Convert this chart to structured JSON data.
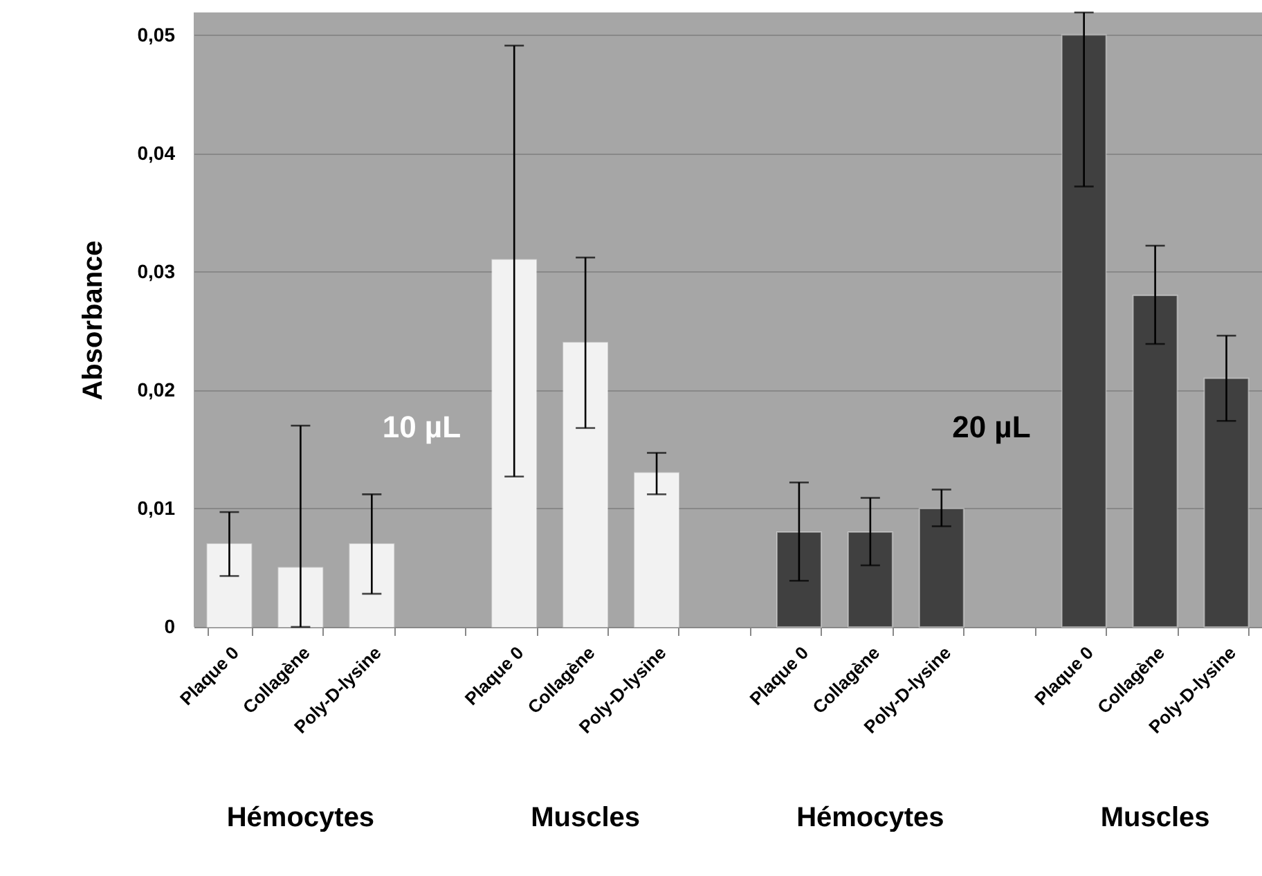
{
  "chart_data": {
    "type": "bar",
    "ylabel": "Absorbance",
    "categories": [
      "Plaque 0",
      "Collagène",
      "Poly-D-lysine",
      null,
      "Plaque 0",
      "Collagène",
      "Poly-D-lysine",
      null,
      "Plaque 0",
      "Collagène",
      "Poly-D-lysine",
      null,
      "Plaque 0",
      "Collagène",
      "Poly-D-lysine"
    ],
    "values": [
      0.007,
      0.005,
      0.007,
      null,
      0.031,
      0.024,
      0.013,
      null,
      0.008,
      0.008,
      0.01,
      null,
      0.05,
      0.028,
      0.021
    ],
    "errors": [
      [
        0.0043,
        0.0097
      ],
      [
        0,
        0.017
      ],
      [
        0.0028,
        0.0112
      ],
      null,
      [
        0.0127,
        0.0491
      ],
      [
        0.0168,
        0.0312
      ],
      [
        0.0112,
        0.0147
      ],
      null,
      [
        0.0039,
        0.0122
      ],
      [
        0.0052,
        0.0109
      ],
      [
        0.0085,
        0.0116
      ],
      null,
      [
        0.0372,
        0.0519
      ],
      [
        0.0239,
        0.0322
      ],
      [
        0.0174,
        0.0246
      ]
    ],
    "colors": [
      "#f2f2f2",
      "#f2f2f2",
      "#f2f2f2",
      null,
      "#f2f2f2",
      "#f2f2f2",
      "#f2f2f2",
      null,
      "#404040",
      "#404040",
      "#404040",
      null,
      "#404040",
      "#404040",
      "#404040"
    ],
    "ylim": [
      0,
      0.0519
    ],
    "yticks": [
      0,
      {
        "value": 0.01,
        "label": "0,01"
      },
      {
        "value": 0.02,
        "label": "0,02"
      },
      {
        "value": 0.03,
        "label": "0,03"
      },
      {
        "value": 0.04,
        "label": "0,04"
      },
      {
        "value": 0.05,
        "label": "0,05"
      }
    ],
    "grid": "y",
    "annotations": [
      "Hémocytes",
      "Muscles",
      "Hémocytes",
      "Muscles",
      "10 µL",
      "20 µL"
    ]
  }
}
